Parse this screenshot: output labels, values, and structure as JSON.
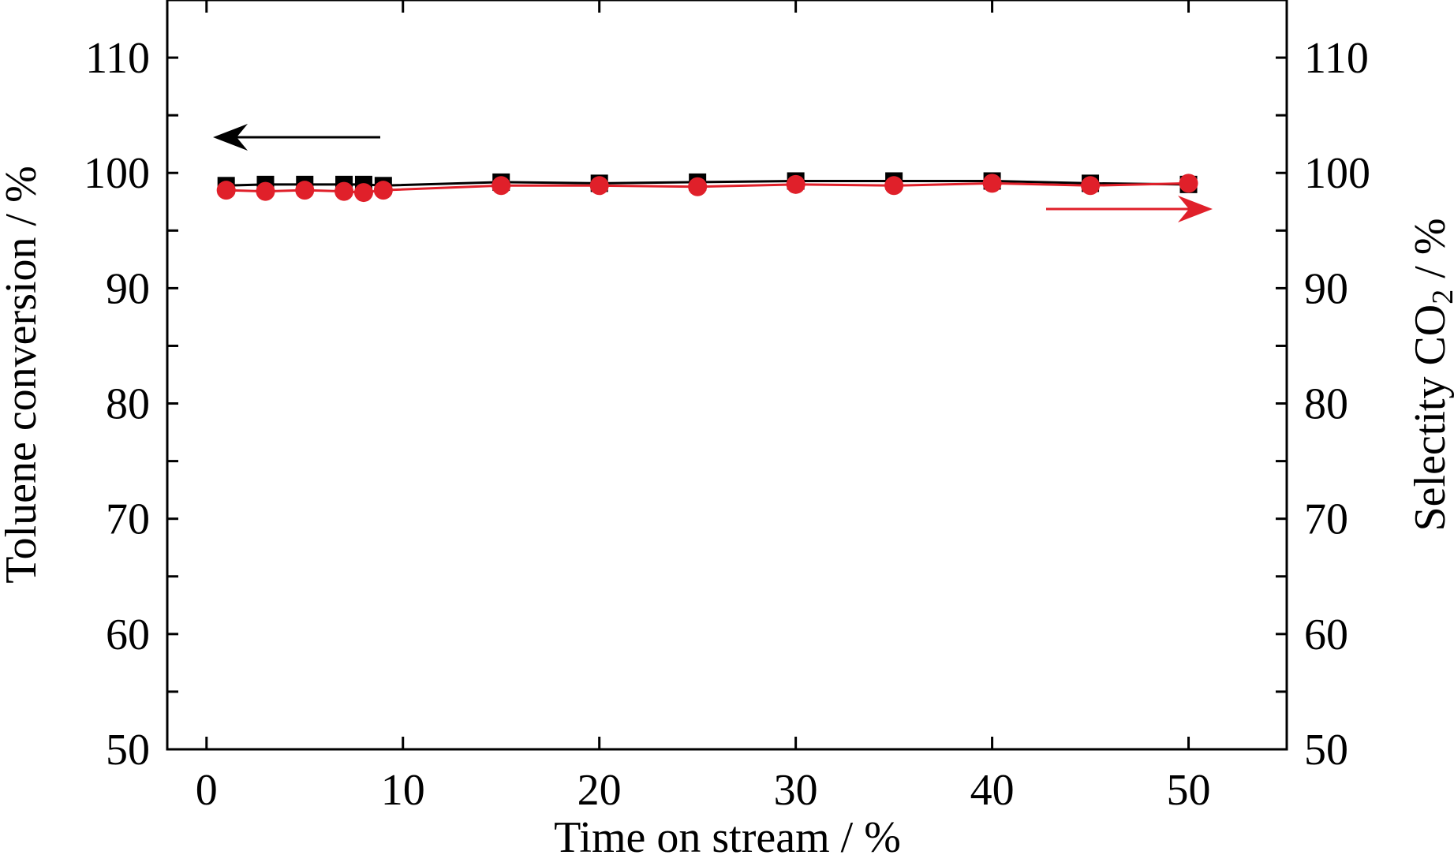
{
  "chart_data": {
    "type": "line",
    "xlabel": "Time on stream / %",
    "ylabel_left": "Toluene conversion / %",
    "ylabel_right_parts": [
      "Selectity CO",
      "2",
      " / %"
    ],
    "xlim": [
      -2,
      55
    ],
    "ylim": [
      50,
      115
    ],
    "x_ticks": [
      0,
      10,
      20,
      30,
      40,
      50
    ],
    "y_ticks": [
      50,
      60,
      70,
      80,
      90,
      100,
      110
    ],
    "grid": false,
    "series": [
      {
        "axis": "left",
        "marker": "square",
        "color": "#000000",
        "x": [
          1,
          3,
          5,
          7,
          8,
          9,
          15,
          20,
          25,
          30,
          35,
          40,
          45,
          50
        ],
        "y": [
          98.9,
          99.0,
          99.0,
          99.0,
          99.0,
          98.9,
          99.2,
          99.1,
          99.2,
          99.3,
          99.3,
          99.3,
          99.1,
          99.0
        ]
      },
      {
        "axis": "right",
        "marker": "circle",
        "color": "#e0202a",
        "x": [
          1,
          3,
          5,
          7,
          8,
          9,
          15,
          20,
          25,
          30,
          35,
          40,
          45,
          50
        ],
        "y": [
          98.5,
          98.4,
          98.5,
          98.4,
          98.3,
          98.5,
          98.9,
          98.9,
          98.8,
          99.0,
          98.9,
          99.1,
          98.9,
          99.1
        ]
      }
    ],
    "annotations": [
      {
        "type": "arrow",
        "direction": "left",
        "color": "#000000",
        "points_to": "left-axis"
      },
      {
        "type": "arrow",
        "direction": "right",
        "color": "#e0202a",
        "points_to": "right-axis"
      }
    ]
  }
}
